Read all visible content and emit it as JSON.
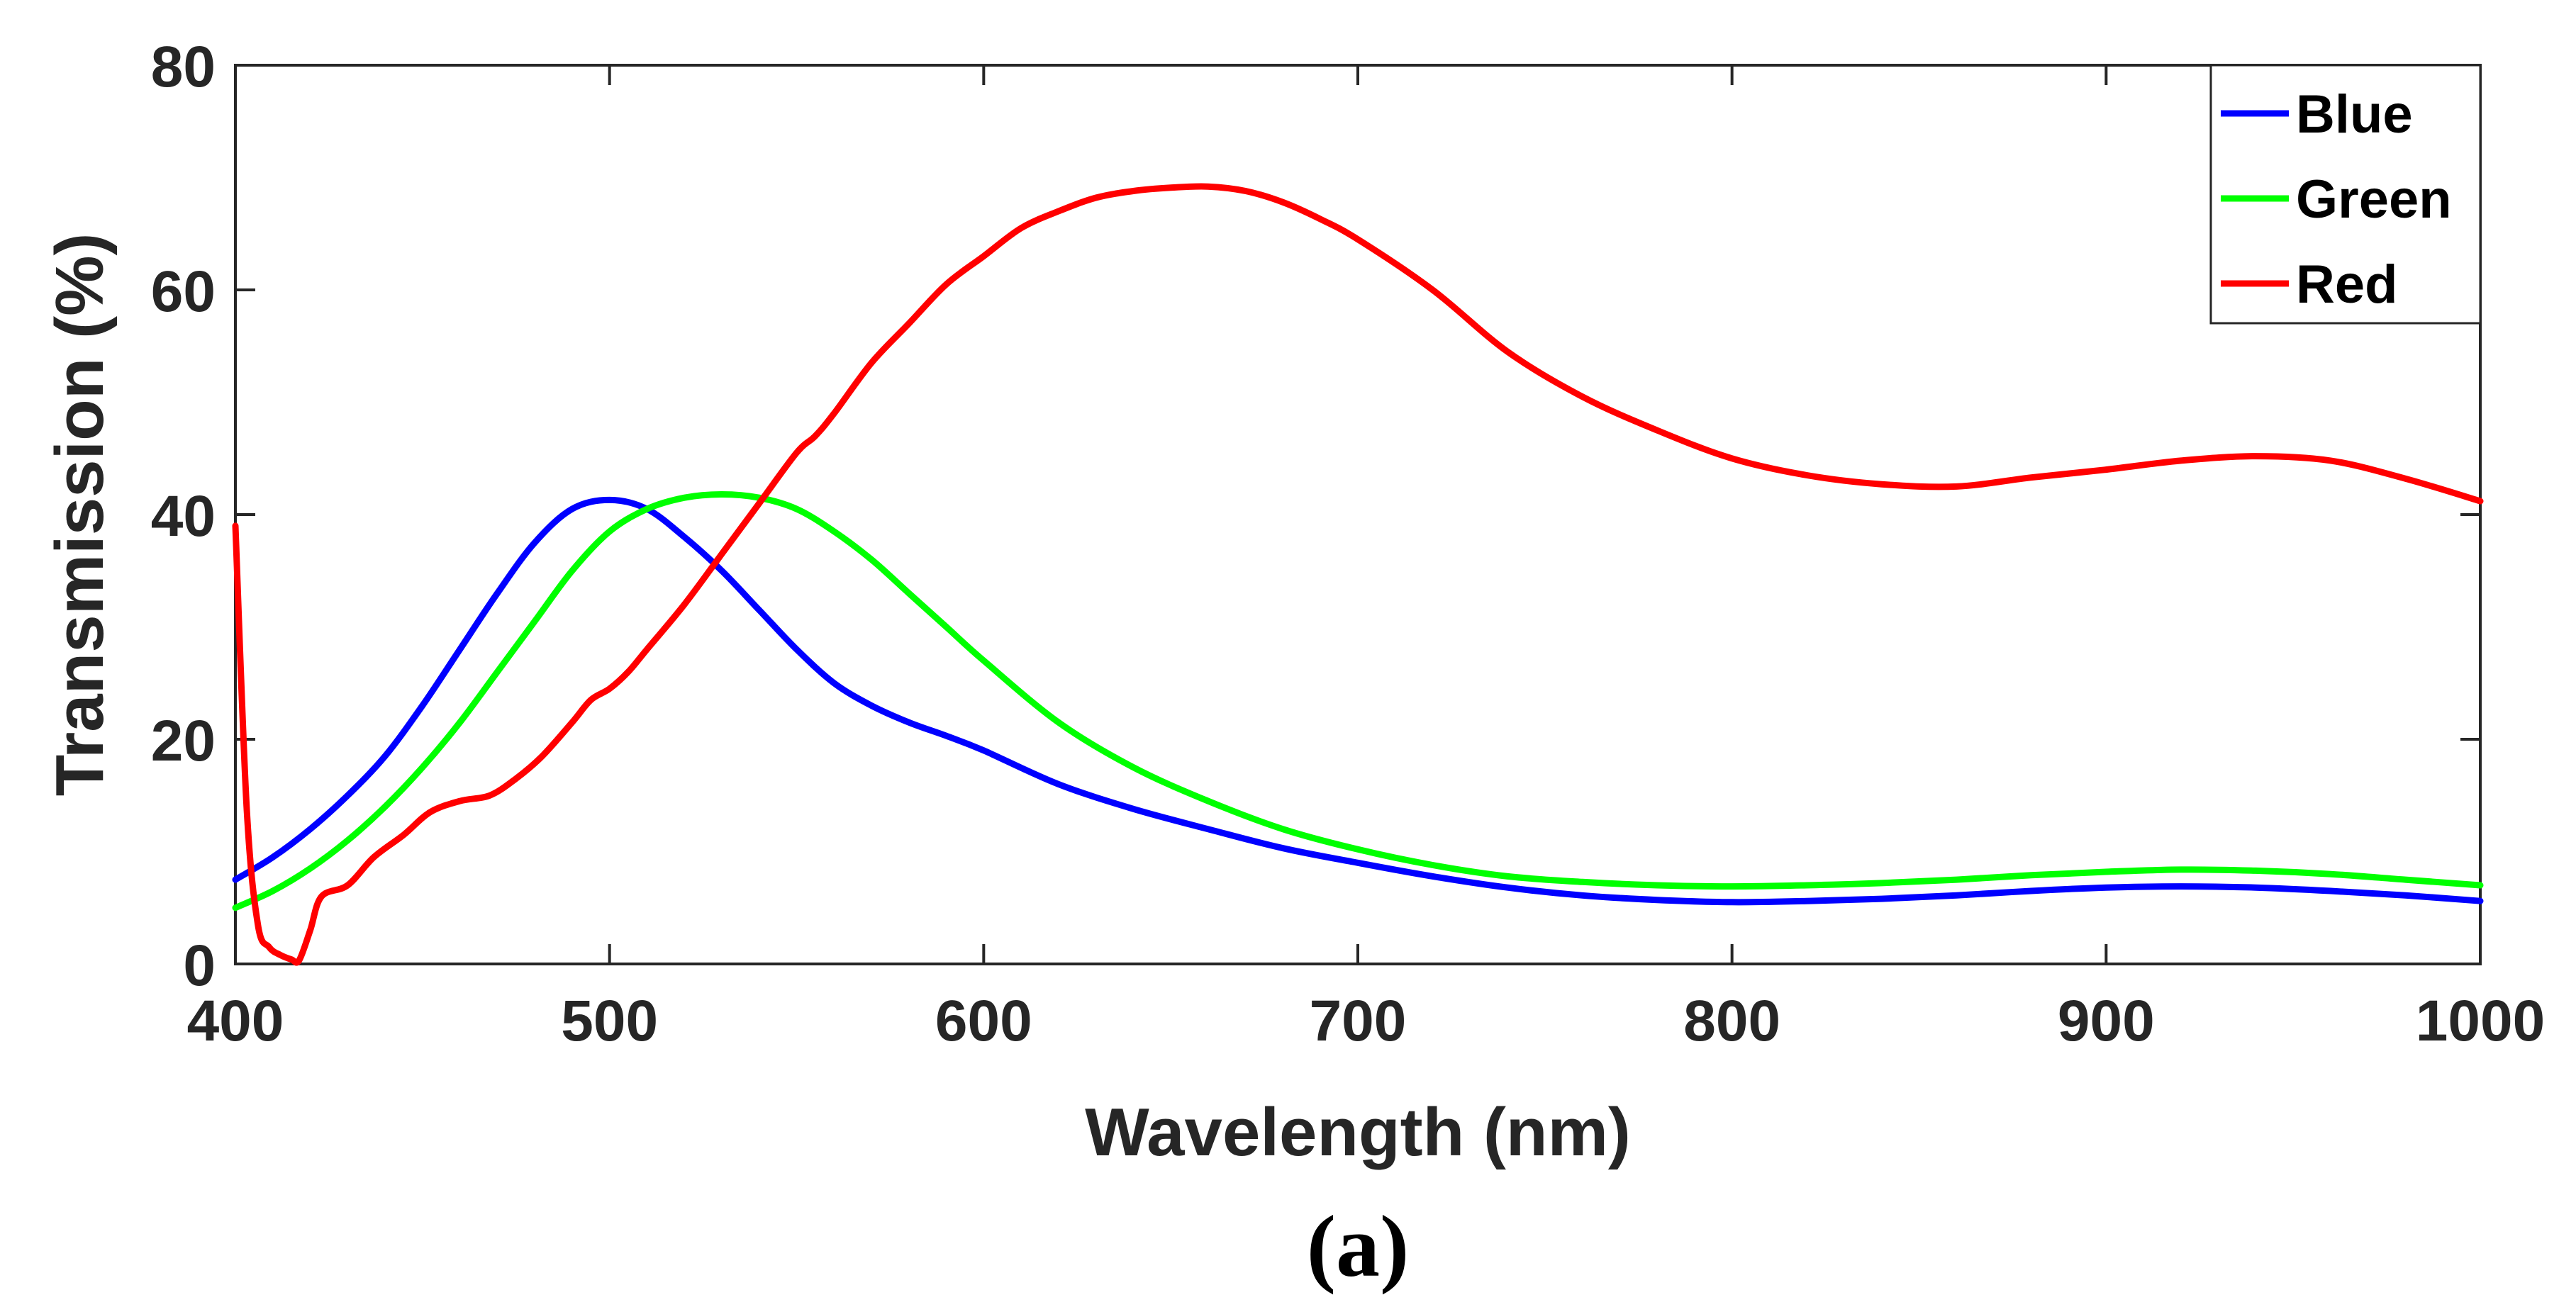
{
  "chart_data": {
    "type": "line",
    "title": "",
    "caption": "(a)",
    "xlabel": "Wavelength (nm)",
    "ylabel": "Transmission (%)",
    "xlim": [
      400,
      1000
    ],
    "ylim": [
      0,
      80
    ],
    "xticks": [
      400,
      500,
      600,
      700,
      800,
      900,
      1000
    ],
    "yticks": [
      0,
      20,
      40,
      60,
      80
    ],
    "xtick_labels": [
      "400",
      "500",
      "600",
      "700",
      "800",
      "900",
      "1000"
    ],
    "ytick_labels": [
      "0",
      "20",
      "40",
      "60",
      "80"
    ],
    "grid": false,
    "legend_position": "top-right",
    "series": [
      {
        "name": "Blue",
        "color": "#0000ff",
        "x": [
          400,
          410,
          420,
          430,
          440,
          450,
          460,
          470,
          480,
          490,
          500,
          510,
          520,
          530,
          540,
          550,
          560,
          570,
          580,
          590,
          600,
          620,
          640,
          660,
          680,
          700,
          720,
          740,
          760,
          780,
          800,
          820,
          840,
          860,
          880,
          900,
          920,
          940,
          960,
          980,
          1000
        ],
        "y": [
          7.5,
          9.5,
          12.0,
          15.0,
          18.5,
          23.0,
          28.0,
          33.0,
          37.5,
          40.5,
          41.3,
          40.5,
          38.0,
          35.0,
          31.5,
          28.0,
          25.0,
          23.0,
          21.5,
          20.3,
          19.0,
          16.0,
          13.8,
          12.0,
          10.3,
          9.0,
          7.8,
          6.8,
          6.1,
          5.7,
          5.5,
          5.6,
          5.8,
          6.1,
          6.5,
          6.8,
          6.9,
          6.8,
          6.5,
          6.1,
          5.6
        ]
      },
      {
        "name": "Green",
        "color": "#00ff00",
        "x": [
          400,
          410,
          420,
          430,
          440,
          450,
          460,
          470,
          480,
          490,
          500,
          510,
          520,
          530,
          540,
          550,
          560,
          570,
          580,
          590,
          600,
          620,
          640,
          660,
          680,
          700,
          720,
          740,
          760,
          780,
          800,
          820,
          840,
          860,
          880,
          900,
          920,
          940,
          960,
          980,
          1000
        ],
        "y": [
          5.0,
          6.5,
          8.5,
          11.0,
          14.0,
          17.5,
          21.5,
          26.0,
          30.5,
          35.0,
          38.5,
          40.5,
          41.5,
          41.8,
          41.5,
          40.5,
          38.5,
          36.0,
          33.0,
          30.0,
          27.0,
          21.5,
          17.5,
          14.5,
          12.0,
          10.2,
          8.8,
          7.8,
          7.3,
          7.0,
          6.9,
          7.0,
          7.2,
          7.5,
          7.9,
          8.2,
          8.4,
          8.3,
          8.0,
          7.5,
          7.0
        ]
      },
      {
        "name": "Red",
        "color": "#ff0000",
        "x": [
          400,
          403,
          406,
          409,
          412,
          415,
          417,
          420,
          423,
          430,
          437,
          445,
          452,
          460,
          468,
          475,
          482,
          490,
          495,
          500,
          505,
          510,
          520,
          530,
          540,
          550,
          555,
          560,
          570,
          580,
          590,
          600,
          610,
          620,
          630,
          640,
          650,
          660,
          670,
          680,
          690,
          700,
          720,
          740,
          760,
          780,
          800,
          820,
          840,
          860,
          880,
          900,
          920,
          940,
          960,
          980,
          1000
        ],
        "y": [
          39.0,
          14.0,
          3.5,
          1.5,
          0.8,
          0.4,
          0.3,
          3.0,
          6.0,
          7.0,
          9.5,
          11.5,
          13.5,
          14.5,
          15.0,
          16.5,
          18.5,
          21.5,
          23.5,
          24.5,
          26.0,
          28.0,
          32.0,
          36.5,
          41.0,
          45.5,
          47.0,
          49.0,
          53.5,
          57.0,
          60.5,
          63.0,
          65.5,
          67.0,
          68.2,
          68.8,
          69.1,
          69.2,
          68.8,
          67.8,
          66.3,
          64.5,
          60.0,
          54.5,
          50.5,
          47.5,
          45.0,
          43.5,
          42.7,
          42.5,
          43.3,
          44.0,
          44.8,
          45.2,
          44.8,
          43.2,
          41.2
        ]
      }
    ]
  }
}
